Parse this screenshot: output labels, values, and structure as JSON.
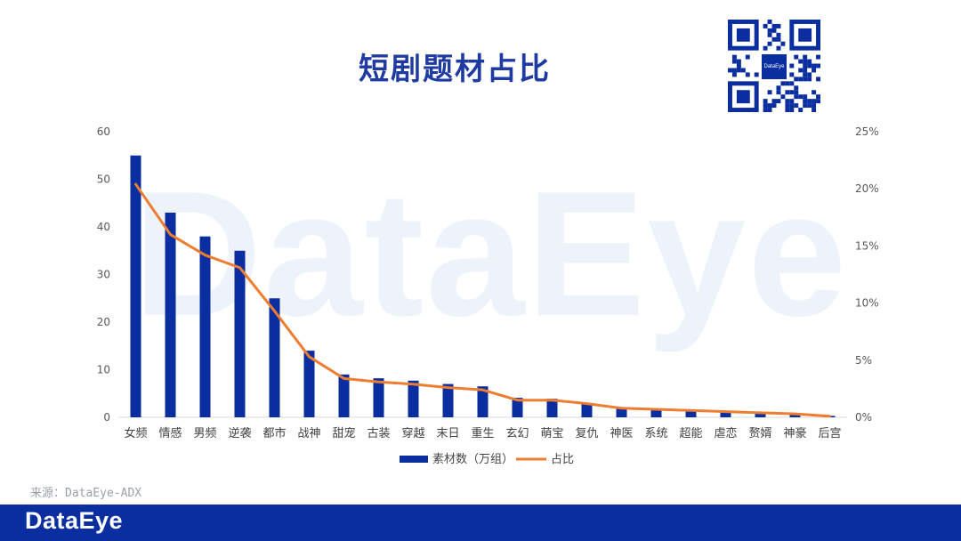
{
  "title": "短剧题材占比",
  "watermark": "DataEye",
  "source": "来源：DataEye-ADX",
  "footer_logo": "DataEye",
  "qr_center": "DataEye",
  "colors": {
    "bar": "#0a2ea0",
    "line": "#ed7d31",
    "brand": "#0a2ea0",
    "title": "#1f3aa0"
  },
  "chart_data": {
    "type": "bar",
    "categories": [
      "女频",
      "情感",
      "男频",
      "逆袭",
      "都市",
      "战神",
      "甜宠",
      "古装",
      "穿越",
      "末日",
      "重生",
      "玄幻",
      "萌宝",
      "复仇",
      "神医",
      "系统",
      "超能",
      "虐恋",
      "赘婿",
      "神豪",
      "后宫"
    ],
    "series": [
      {
        "name": "素材数（万组）",
        "type": "bar",
        "axis": "left",
        "values": [
          55,
          43,
          38,
          35,
          25,
          14,
          9,
          8.2,
          7.7,
          7,
          6.5,
          4.1,
          3.9,
          3,
          2,
          1.8,
          1.5,
          1.2,
          1.1,
          0.8,
          0.3
        ]
      },
      {
        "name": "占比",
        "type": "line",
        "axis": "right",
        "values": [
          20.4,
          16,
          14.2,
          13.1,
          9.3,
          5.3,
          3.4,
          3.1,
          2.9,
          2.6,
          2.4,
          1.5,
          1.5,
          1.2,
          0.8,
          0.7,
          0.6,
          0.5,
          0.4,
          0.3,
          0.1
        ]
      }
    ],
    "ylim_left": [
      0,
      60
    ],
    "yticks_left": [
      "0",
      "10",
      "20",
      "30",
      "40",
      "50",
      "60"
    ],
    "ylim_right": [
      0,
      25
    ],
    "yticks_right": [
      "0%",
      "5%",
      "10%",
      "15%",
      "20%",
      "25%"
    ],
    "grid": false,
    "legend_position": "bottom"
  }
}
